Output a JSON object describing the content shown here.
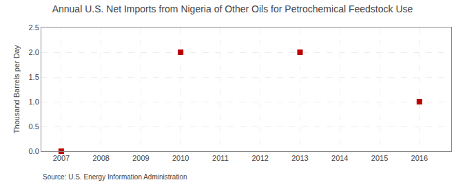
{
  "chart_data": {
    "type": "scatter",
    "title": "Annual U.S. Net Imports from Nigeria of Other Oils for Petrochemical Feedstock Use",
    "ylabel": "Thousand Barrels per Day",
    "annotations": [
      "Source: U.S. Energy Information Administration"
    ],
    "x": [
      2007,
      2010,
      2013,
      2016
    ],
    "values": [
      0.0,
      2.0,
      2.0,
      1.0
    ],
    "color": "#bb0000",
    "marker": "square",
    "xlim": [
      2006.5,
      2016.8
    ],
    "ylim": [
      0.0,
      2.5
    ],
    "xticks": [
      2007,
      2008,
      2009,
      2010,
      2011,
      2012,
      2013,
      2014,
      2015,
      2016
    ],
    "yticks": [
      {
        "value": 0.0,
        "label": "0.0"
      },
      0.5,
      {
        "value": 1.0,
        "label": "1.0"
      },
      1.5,
      {
        "value": 2.0,
        "label": "2.0"
      },
      2.5
    ],
    "grid": true
  }
}
